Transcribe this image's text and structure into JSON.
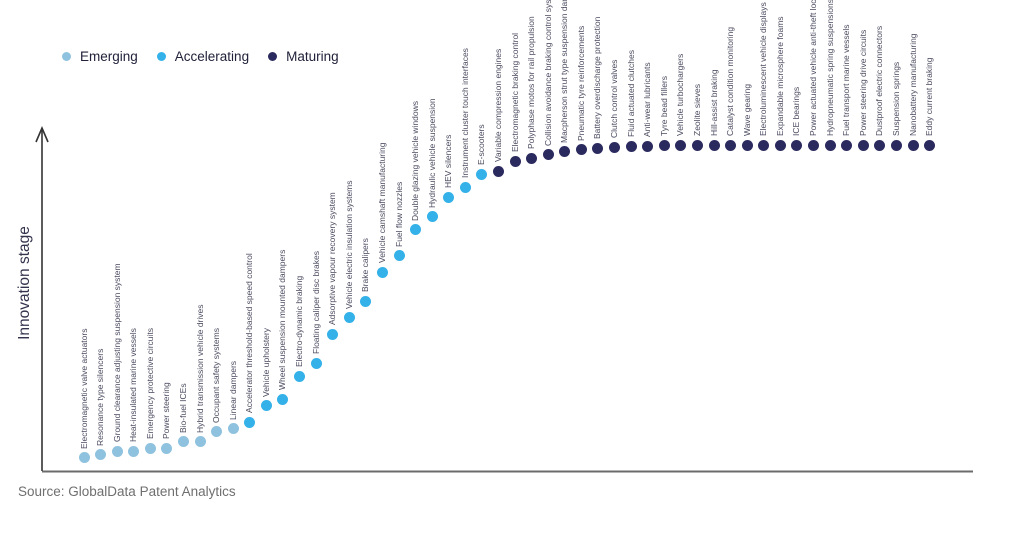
{
  "legend": [
    {
      "label": "Emerging",
      "color": "#8fc2de"
    },
    {
      "label": "Accelerating",
      "color": "#33b1e8"
    },
    {
      "label": "Maturing",
      "color": "#2b2a5e"
    }
  ],
  "stage_colors": {
    "Emerging": "#8fc2de",
    "Accelerating": "#33b1e8",
    "Maturing": "#2b2a5e"
  },
  "ylabel": "Innovation stage",
  "source_text": "Source: GlobalData Patent Analytics",
  "chart_data": {
    "type": "scatter",
    "title": "",
    "xlabel": "",
    "ylabel": "Innovation stage",
    "ylim": [
      0,
      100
    ],
    "grid": false,
    "legend_position": "top-left",
    "legend_entries": [
      "Emerging",
      "Accelerating",
      "Maturing"
    ],
    "points": [
      {
        "label": "Electromagnetic valve actuators",
        "stage": "Emerging",
        "value": 4
      },
      {
        "label": "Resonance type silencers",
        "stage": "Emerging",
        "value": 5
      },
      {
        "label": "Ground clearance adjusting suspension system",
        "stage": "Emerging",
        "value": 6
      },
      {
        "label": "Heat-insulated marine vessels",
        "stage": "Emerging",
        "value": 6
      },
      {
        "label": "Emergency protective circuits",
        "stage": "Emerging",
        "value": 7
      },
      {
        "label": "Power steering",
        "stage": "Emerging",
        "value": 7
      },
      {
        "label": "Bio-fuel ICEs",
        "stage": "Emerging",
        "value": 9
      },
      {
        "label": "Hybrid transmission vehicle drives",
        "stage": "Emerging",
        "value": 9
      },
      {
        "label": "Occupant safety systems",
        "stage": "Emerging",
        "value": 12
      },
      {
        "label": "Linear dampers",
        "stage": "Emerging",
        "value": 13
      },
      {
        "label": "Accelerator threshold-based speed control",
        "stage": "Accelerating",
        "value": 15
      },
      {
        "label": "Vehicle upholstery",
        "stage": "Accelerating",
        "value": 20
      },
      {
        "label": "Wheel suspension mounted dampers",
        "stage": "Accelerating",
        "value": 22
      },
      {
        "label": "Electro-dynamic braking",
        "stage": "Accelerating",
        "value": 29
      },
      {
        "label": "Floating caliper disc brakes",
        "stage": "Accelerating",
        "value": 33
      },
      {
        "label": "Adsorptive vapour recovery system",
        "stage": "Accelerating",
        "value": 42
      },
      {
        "label": "Vehicle electric insulation systems",
        "stage": "Accelerating",
        "value": 47
      },
      {
        "label": "Brake calipers",
        "stage": "Accelerating",
        "value": 52
      },
      {
        "label": "Vehicle camshaft manufacturing",
        "stage": "Accelerating",
        "value": 61
      },
      {
        "label": "Fuel flow nozzles",
        "stage": "Accelerating",
        "value": 66
      },
      {
        "label": "Double glazing vehicle windows",
        "stage": "Accelerating",
        "value": 74
      },
      {
        "label": "Hydraulic vehicle suspension",
        "stage": "Accelerating",
        "value": 78
      },
      {
        "label": "HEV silencers",
        "stage": "Accelerating",
        "value": 84
      },
      {
        "label": "Instrument cluster touch interfaces",
        "stage": "Accelerating",
        "value": 87
      },
      {
        "label": "E-scooters",
        "stage": "Accelerating",
        "value": 91
      },
      {
        "label": "Variable compression engines",
        "stage": "Maturing",
        "value": 92
      },
      {
        "label": "Electromagnetic braking control",
        "stage": "Maturing",
        "value": 95
      },
      {
        "label": "Polyphase motos for rail propulsion",
        "stage": "Maturing",
        "value": 96
      },
      {
        "label": "Collision avoidance braking control system",
        "stage": "Maturing",
        "value": 97
      },
      {
        "label": "Macpherson strut type suspension damper",
        "stage": "Maturing",
        "value": 98
      },
      {
        "label": "Pneumatic tyre reinforcements",
        "stage": "Maturing",
        "value": 98.5
      },
      {
        "label": "Battery overdischarge protection",
        "stage": "Maturing",
        "value": 99
      },
      {
        "label": "Clutch control valves",
        "stage": "Maturing",
        "value": 99.3
      },
      {
        "label": "Fluid actuated clutches",
        "stage": "Maturing",
        "value": 99.6
      },
      {
        "label": "Anti-wear lubricants",
        "stage": "Maturing",
        "value": 99.6
      },
      {
        "label": "Tyre bead fillers",
        "stage": "Maturing",
        "value": 100
      },
      {
        "label": "Vehicle turbochargers",
        "stage": "Maturing",
        "value": 100
      },
      {
        "label": "Zeolite sieves",
        "stage": "Maturing",
        "value": 100
      },
      {
        "label": "Hill-assist braking",
        "stage": "Maturing",
        "value": 100
      },
      {
        "label": "Catalyst condition monitoring",
        "stage": "Maturing",
        "value": 100
      },
      {
        "label": "Wave gearing",
        "stage": "Maturing",
        "value": 100
      },
      {
        "label": "Electroluminescent vehicle displays",
        "stage": "Maturing",
        "value": 100
      },
      {
        "label": "Expandable microsphere foams",
        "stage": "Maturing",
        "value": 100
      },
      {
        "label": "ICE bearings",
        "stage": "Maturing",
        "value": 100
      },
      {
        "label": "Power actuated vehicle anti-theft locks",
        "stage": "Maturing",
        "value": 100
      },
      {
        "label": "Hydropneumatic spring suspensions",
        "stage": "Maturing",
        "value": 100
      },
      {
        "label": "Fuel transport marine vessels",
        "stage": "Maturing",
        "value": 100
      },
      {
        "label": "Power steering drive circuits",
        "stage": "Maturing",
        "value": 100
      },
      {
        "label": "Dustproof electric connectors",
        "stage": "Maturing",
        "value": 100
      },
      {
        "label": "Suspension springs",
        "stage": "Maturing",
        "value": 100
      },
      {
        "label": "Nanobattery manufacturing",
        "stage": "Maturing",
        "value": 100
      },
      {
        "label": "Eddy current braking",
        "stage": "Maturing",
        "value": 100
      }
    ]
  }
}
